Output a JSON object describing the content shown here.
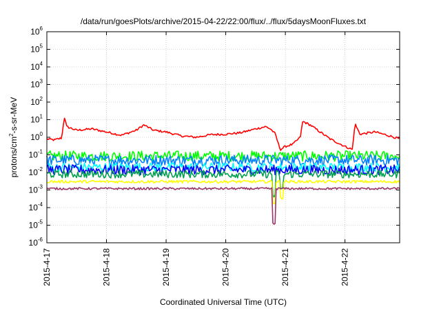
{
  "chart_data": {
    "type": "line",
    "title": "/data/run/goesPlots/archive/2015-04-22/22:00/flux/../flux/5daysMoonFluxes.txt",
    "xlabel": "Coordinated Universal Time (UTC)",
    "ylabel": {
      "prefix": "protons/cm",
      "superscript": "2",
      "suffix": "-s-sr-MeV"
    },
    "yscale": "log",
    "ylim": [
      1e-06,
      1000000
    ],
    "y_ticks": [
      {
        "base": "10",
        "exp": "-6",
        "value": 1e-06
      },
      {
        "base": "10",
        "exp": "-5",
        "value": 1e-05
      },
      {
        "base": "10",
        "exp": "-4",
        "value": 0.0001
      },
      {
        "base": "10",
        "exp": "-3",
        "value": 0.001
      },
      {
        "base": "10",
        "exp": "-2",
        "value": 0.01
      },
      {
        "base": "10",
        "exp": "-1",
        "value": 0.1
      },
      {
        "base": "10",
        "exp": "0",
        "value": 1
      },
      {
        "base": "10",
        "exp": "1",
        "value": 10
      },
      {
        "base": "10",
        "exp": "2",
        "value": 100
      },
      {
        "base": "10",
        "exp": "3",
        "value": 1000
      },
      {
        "base": "10",
        "exp": "4",
        "value": 10000
      },
      {
        "base": "10",
        "exp": "5",
        "value": 100000
      },
      {
        "base": "10",
        "exp": "6",
        "value": 1000000
      }
    ],
    "xlim": [
      "2015-04-17T00:00",
      "2015-04-22T22:00"
    ],
    "x_ticks": [
      {
        "label": "2015-4-17",
        "value": "2015-04-17T00:00"
      },
      {
        "label": "2015-4-18",
        "value": "2015-04-18T00:00"
      },
      {
        "label": "2015-4-19",
        "value": "2015-04-19T00:00"
      },
      {
        "label": "2015-4-20",
        "value": "2015-04-20T00:00"
      },
      {
        "label": "2015-4-21",
        "value": "2015-04-21T00:00"
      },
      {
        "label": "2015-4-22",
        "value": "2015-04-22T00:00"
      }
    ],
    "grid": true,
    "series": [
      {
        "color": "#ff0000",
        "base": 1.5,
        "noise": 0.12,
        "points": [
          [
            "2015-04-17T00:00",
            0.8
          ],
          [
            "2015-04-17T03:00",
            0.7
          ],
          [
            "2015-04-17T06:00",
            0.9
          ],
          [
            "2015-04-17T07:00",
            15
          ],
          [
            "2015-04-17T08:00",
            4
          ],
          [
            "2015-04-17T12:00",
            2.5
          ],
          [
            "2015-04-17T18:00",
            3
          ],
          [
            "2015-04-18T00:00",
            2
          ],
          [
            "2015-04-18T06:00",
            1.3
          ],
          [
            "2015-04-18T12:00",
            2.5
          ],
          [
            "2015-04-18T15:00",
            5
          ],
          [
            "2015-04-18T19:00",
            2.5
          ],
          [
            "2015-04-19T00:00",
            2
          ],
          [
            "2015-04-19T06:00",
            1.2
          ],
          [
            "2015-04-19T12:00",
            1
          ],
          [
            "2015-04-19T18:00",
            1.4
          ],
          [
            "2015-04-20T00:00",
            1.5
          ],
          [
            "2015-04-20T06:00",
            1.8
          ],
          [
            "2015-04-20T12:00",
            3
          ],
          [
            "2015-04-20T16:00",
            4
          ],
          [
            "2015-04-20T18:00",
            3
          ],
          [
            "2015-04-20T20:00",
            1.5
          ],
          [
            "2015-04-20T21:00",
            0.5
          ],
          [
            "2015-04-20T22:00",
            0.2
          ],
          [
            "2015-04-21T00:00",
            0.3
          ],
          [
            "2015-04-21T03:00",
            0.4
          ],
          [
            "2015-04-21T06:00",
            1
          ],
          [
            "2015-04-21T07:00",
            8
          ],
          [
            "2015-04-21T10:00",
            5
          ],
          [
            "2015-04-21T14:00",
            2
          ],
          [
            "2015-04-21T18:00",
            0.8
          ],
          [
            "2015-04-22T00:00",
            0.3
          ],
          [
            "2015-04-22T03:00",
            0.2
          ],
          [
            "2015-04-22T04:00",
            6
          ],
          [
            "2015-04-22T06:00",
            1.5
          ],
          [
            "2015-04-22T12:00",
            2
          ],
          [
            "2015-04-22T18:00",
            1.2
          ],
          [
            "2015-04-22T22:00",
            0.8
          ]
        ]
      },
      {
        "color": "#00ff00",
        "base": 0.085,
        "noise": 0.3,
        "points": []
      },
      {
        "color": "#0080ff",
        "base": 0.05,
        "noise": 0.3,
        "points": []
      },
      {
        "color": "#00ffff",
        "base": 0.02,
        "noise": 0.25,
        "points": []
      },
      {
        "color": "#0000ff",
        "base": 0.014,
        "noise": 0.28,
        "points": []
      },
      {
        "color": "#00a050",
        "base": 0.008,
        "noise": 0.22,
        "points": []
      },
      {
        "color": "#ffff00",
        "base": 0.003,
        "noise": 0.08,
        "points": []
      },
      {
        "color": "#993366",
        "base": 0.0012,
        "noise": 0.06,
        "points": []
      }
    ]
  }
}
